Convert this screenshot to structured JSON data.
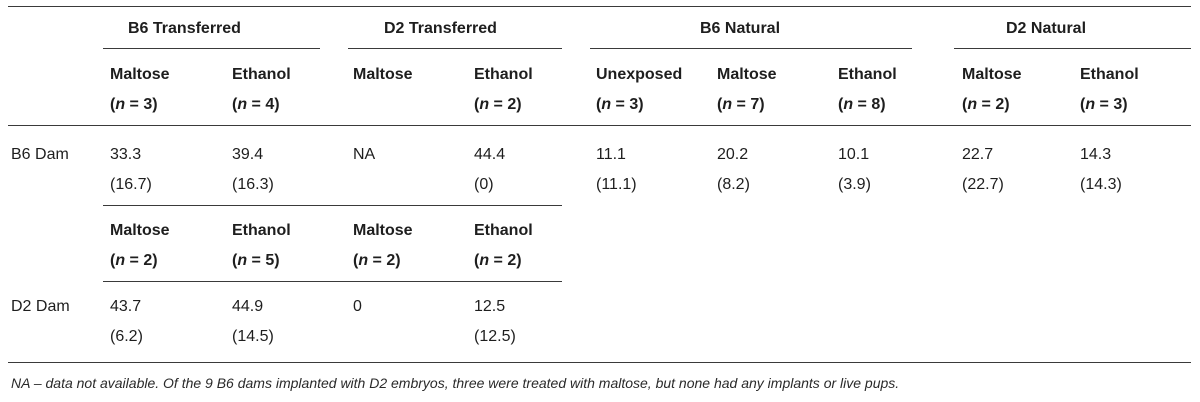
{
  "groups": {
    "b6_transferred": "B6 Transferred",
    "d2_transferred": "D2 Transferred",
    "b6_natural": "B6 Natural",
    "d2_natural": "D2 Natural"
  },
  "b6_dam": {
    "label": "B6 Dam",
    "headers": [
      {
        "name": "Maltose",
        "n": "3"
      },
      {
        "name": "Ethanol",
        "n": "4"
      },
      {
        "name": "Maltose",
        "n": ""
      },
      {
        "name": "Ethanol",
        "n": "2"
      },
      {
        "name": "Unexposed",
        "n": "3"
      },
      {
        "name": "Maltose",
        "n": "7"
      },
      {
        "name": "Ethanol",
        "n": "8"
      },
      {
        "name": "Maltose",
        "n": "2"
      },
      {
        "name": "Ethanol",
        "n": "3"
      }
    ],
    "cells": [
      {
        "value": "33.3",
        "se": "(16.7)"
      },
      {
        "value": "39.4",
        "se": "(16.3)"
      },
      {
        "value": "NA",
        "se": ""
      },
      {
        "value": "44.4",
        "se": "(0)"
      },
      {
        "value": "11.1",
        "se": "(11.1)"
      },
      {
        "value": "20.2",
        "se": "(8.2)"
      },
      {
        "value": "10.1",
        "se": "(3.9)"
      },
      {
        "value": "22.7",
        "se": "(22.7)"
      },
      {
        "value": "14.3",
        "se": "(14.3)"
      }
    ]
  },
  "d2_dam": {
    "label": "D2 Dam",
    "headers": [
      {
        "name": "Maltose",
        "n": "2"
      },
      {
        "name": "Ethanol",
        "n": "5"
      },
      {
        "name": "Maltose",
        "n": "2"
      },
      {
        "name": "Ethanol",
        "n": "2"
      }
    ],
    "cells": [
      {
        "value": "43.7",
        "se": "(6.2)"
      },
      {
        "value": "44.9",
        "se": "(14.5)"
      },
      {
        "value": "0",
        "se": ""
      },
      {
        "value": "12.5",
        "se": "(12.5)"
      }
    ]
  },
  "n_symbol": "n",
  "footnote": "NA – data not available. Of the 9 B6 dams implanted with D2 embryos, three were treated with maltose, but none had any implants or live pups."
}
